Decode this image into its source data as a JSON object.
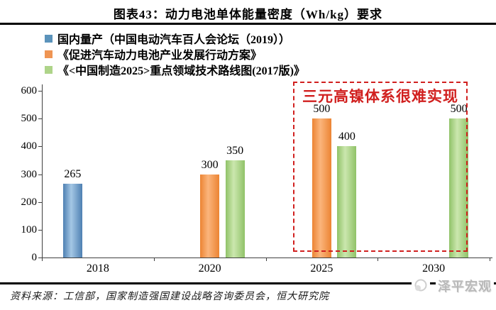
{
  "title": "图表43：动力电池单体能量密度（Wh/kg）要求",
  "legend": {
    "items": [
      {
        "label": "国内量产（中国电动汽车百人会论坛（2019））",
        "color": "#5b93bb"
      },
      {
        "label": "《促进汽车动力电池产业发展行动方案》",
        "color": "#ef9553"
      },
      {
        "label": "《<中国制造2025>重点领域技术路线图(2017版)》",
        "color": "#aed489"
      }
    ]
  },
  "chart_data": {
    "type": "bar",
    "title": "图表43：动力电池单体能量密度（Wh/kg）要求",
    "categories": [
      "2018",
      "2020",
      "2025",
      "2030"
    ],
    "series": [
      {
        "name": "国内量产（中国电动汽车百人会论坛（2019））",
        "values": [
          265,
          null,
          null,
          null
        ],
        "color_edge": "#4e80b2",
        "color_center": "#a4c7e5"
      },
      {
        "name": "《促进汽车动力电池产业发展行动方案》",
        "values": [
          null,
          300,
          500,
          null
        ],
        "color_edge": "#ec8433",
        "color_center": "#fbb57c"
      },
      {
        "name": "《<中国制造2025>重点领域技术路线图(2017版)》",
        "values": [
          null,
          350,
          400,
          500
        ],
        "color_edge": "#90c268",
        "color_center": "#cbe7ae"
      }
    ],
    "xlabel": "",
    "ylabel": "",
    "ylim": [
      0,
      600
    ],
    "yticks": [
      0,
      100,
      200,
      300,
      400,
      500,
      600
    ],
    "grid": false,
    "legend_position": "top-left",
    "annotation": {
      "text": "三元高镍体系很难实现",
      "color": "#d1201f",
      "box_style": "red-dashed",
      "covers_categories": [
        "2025",
        "2030"
      ]
    }
  },
  "footer": {
    "source": "资料来源：工信部，国家制造强国建设战略咨询委员会，恒大研究院",
    "watermark": "泽平宏观"
  },
  "colors": {
    "annotation_red": "#d1201f",
    "axis": "#404040",
    "text": "#000000",
    "watermark_gray": "#b9b9b9"
  }
}
